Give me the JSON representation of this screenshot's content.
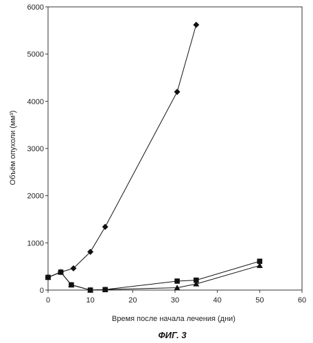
{
  "chart_data": {
    "type": "line",
    "title": "",
    "xlabel": "Время после начала лечения (дни)",
    "ylabel": "Объём опухоли (мм³)",
    "xlim": [
      0,
      60
    ],
    "ylim": [
      0,
      6000
    ],
    "xticks": [
      0,
      10,
      20,
      30,
      40,
      50,
      60
    ],
    "yticks": [
      0,
      1000,
      2000,
      3000,
      4000,
      5000,
      6000
    ],
    "grid": false,
    "legend": "none",
    "series": [
      {
        "marker": "diamond",
        "color": "#111111",
        "points": [
          {
            "x": 0,
            "y": 270
          },
          {
            "x": 3,
            "y": 380
          },
          {
            "x": 6,
            "y": 460
          },
          {
            "x": 10,
            "y": 810
          },
          {
            "x": 13.5,
            "y": 1340
          },
          {
            "x": 30.5,
            "y": 4200
          },
          {
            "x": 35,
            "y": 5620
          }
        ]
      },
      {
        "marker": "square",
        "color": "#111111",
        "points": [
          {
            "x": 0,
            "y": 270
          },
          {
            "x": 3,
            "y": 380
          },
          {
            "x": 5.5,
            "y": 110
          },
          {
            "x": 10,
            "y": 0
          },
          {
            "x": 13.5,
            "y": 10
          },
          {
            "x": 30.5,
            "y": 190
          },
          {
            "x": 35,
            "y": 210
          },
          {
            "x": 50,
            "y": 610
          }
        ]
      },
      {
        "marker": "triangle",
        "color": "#111111",
        "points": [
          {
            "x": 0,
            "y": 270
          },
          {
            "x": 3,
            "y": 380
          },
          {
            "x": 5.5,
            "y": 110
          },
          {
            "x": 10,
            "y": 0
          },
          {
            "x": 13.5,
            "y": 10
          },
          {
            "x": 30.5,
            "y": 50
          },
          {
            "x": 35,
            "y": 130
          },
          {
            "x": 50,
            "y": 520
          }
        ]
      }
    ]
  },
  "caption": "ФИГ. 3"
}
